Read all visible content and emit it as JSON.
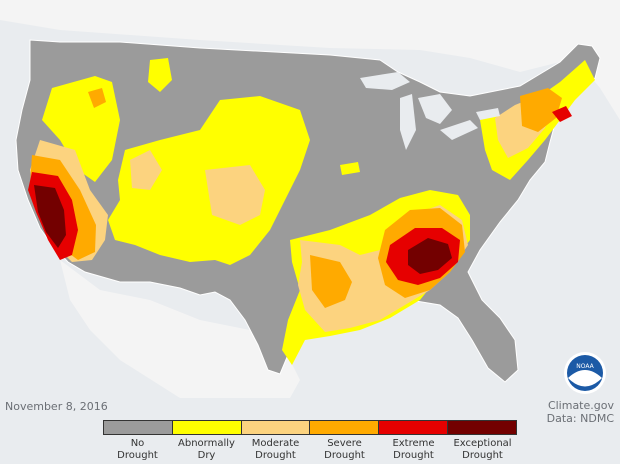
{
  "map": {
    "title": "",
    "date": "November 8, 2016",
    "credit_line1": "Climate.gov",
    "credit_line2": "Data: NDMC",
    "logo_text": "NOAA",
    "colors": {
      "background": "#e9ecef",
      "land": "#9b9b9b",
      "neighbor_land": "#f4f4f4",
      "border": "#ffffff",
      "water": "#e9ecef"
    }
  },
  "legend": {
    "categories": [
      {
        "label_line1": "No",
        "label_line2": "Drought",
        "color": "#9b9b9b"
      },
      {
        "label_line1": "Abnormally",
        "label_line2": "Dry",
        "color": "#ffff00"
      },
      {
        "label_line1": "Moderate",
        "label_line2": "Drought",
        "color": "#fcd37f"
      },
      {
        "label_line1": "Severe",
        "label_line2": "Drought",
        "color": "#ffaa00"
      },
      {
        "label_line1": "Extreme",
        "label_line2": "Drought",
        "color": "#e60000"
      },
      {
        "label_line1": "Exceptional",
        "label_line2": "Drought",
        "color": "#730000"
      }
    ]
  }
}
